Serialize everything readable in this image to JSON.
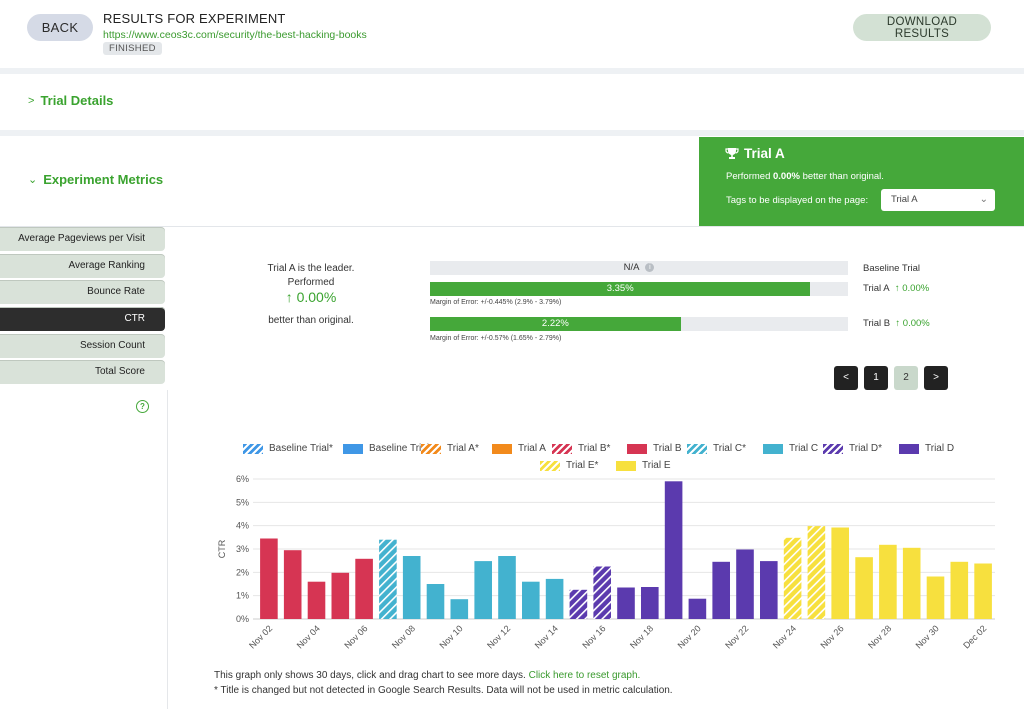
{
  "header": {
    "back_label": "BACK",
    "title": "RESULTS FOR EXPERIMENT",
    "url": "https://www.ceos3c.com/security/the-best-hacking-books",
    "status": "FINISHED",
    "download_label": "DOWNLOAD RESULTS"
  },
  "sections": {
    "trial_details": "Trial Details",
    "experiment_metrics": "Experiment Metrics"
  },
  "winner": {
    "title": "Trial A",
    "performed_prefix": "Performed ",
    "performed_value": "0.00%",
    "performed_suffix": " better than original.",
    "tags_label": "Tags to be displayed on the page:",
    "tags_selected": "Trial A"
  },
  "metric_tabs": [
    {
      "label": "Average Pageviews per Visit"
    },
    {
      "label": "Average Ranking"
    },
    {
      "label": "Bounce Rate"
    },
    {
      "label": "CTR",
      "active": true
    },
    {
      "label": "Session Count"
    },
    {
      "label": "Total Score"
    }
  ],
  "leader": {
    "line1": "Trial A is the leader.",
    "line2": "Performed",
    "value": "↑ 0.00%",
    "line3": "better than original."
  },
  "trial_bars": [
    {
      "bar_text": "N/A",
      "fill_pct": 0,
      "label": "Baseline Trial",
      "change": "",
      "moe": ""
    },
    {
      "bar_text": "3.35%",
      "fill_pct": 91,
      "label": "Trial A",
      "change": "↑ 0.00%",
      "moe": "Margin of Error: +/-0.445% (2.9% - 3.79%)"
    },
    {
      "bar_text": "2.22%",
      "fill_pct": 60,
      "label": "Trial B",
      "change": "↑ 0.00%",
      "moe": "Margin of Error: +/-0.57% (1.65% - 2.79%)"
    }
  ],
  "pagination": {
    "prev": "<",
    "page1": "1",
    "page2": "2",
    "next": ">"
  },
  "chart_legend": [
    {
      "label": "Baseline Trial*",
      "color": "#3f97e6",
      "hatch": true
    },
    {
      "label": "Baseline Trial",
      "color": "#3f97e6",
      "hatch": false
    },
    {
      "label": "Trial A*",
      "color": "#f28a1c",
      "hatch": true
    },
    {
      "label": "Trial A",
      "color": "#f28a1c",
      "hatch": false
    },
    {
      "label": "Trial B*",
      "color": "#d63553",
      "hatch": true
    },
    {
      "label": "Trial B",
      "color": "#d63553",
      "hatch": false
    },
    {
      "label": "Trial C*",
      "color": "#43b2cf",
      "hatch": true
    },
    {
      "label": "Trial C",
      "color": "#43b2cf",
      "hatch": false
    },
    {
      "label": "Trial D*",
      "color": "#5b3aae",
      "hatch": true
    },
    {
      "label": "Trial D",
      "color": "#5b3aae",
      "hatch": false
    },
    {
      "label": "Trial E*",
      "color": "#f7e03e",
      "hatch": true
    },
    {
      "label": "Trial E",
      "color": "#f7e03e",
      "hatch": false
    }
  ],
  "chart_data": {
    "type": "bar",
    "ylabel": "CTR",
    "ylim": [
      0,
      6
    ],
    "y_ticks": [
      "0%",
      "1%",
      "2%",
      "3%",
      "4%",
      "5%",
      "6%"
    ],
    "x_tick_labels": [
      "Nov 02",
      "Nov 04",
      "Nov 06",
      "Nov 08",
      "Nov 10",
      "Nov 12",
      "Nov 14",
      "Nov 16",
      "Nov 18",
      "Nov 20",
      "Nov 22",
      "Nov 24",
      "Nov 26",
      "Nov 28",
      "Nov 30",
      "Dec 02"
    ],
    "grid": true,
    "values": [
      3.45,
      2.95,
      1.6,
      1.98,
      2.58,
      3.4,
      2.7,
      1.5,
      0.85,
      2.48,
      2.7,
      1.6,
      1.72,
      1.25,
      2.25,
      1.35,
      1.37,
      5.9,
      0.87,
      2.45,
      2.98,
      2.48,
      3.48,
      3.98,
      3.92,
      2.65,
      3.18,
      3.05,
      1.82,
      2.45,
      2.38
    ],
    "series": [
      "Trial B",
      "Trial B",
      "Trial B",
      "Trial B",
      "Trial B",
      "Trial C*",
      "Trial C",
      "Trial C",
      "Trial C",
      "Trial C",
      "Trial C",
      "Trial C",
      "Trial C",
      "Trial D*",
      "Trial D*",
      "Trial D",
      "Trial D",
      "Trial D",
      "Trial D",
      "Trial D",
      "Trial D",
      "Trial D",
      "Trial E*",
      "Trial E*",
      "Trial E",
      "Trial E",
      "Trial E",
      "Trial E",
      "Trial E",
      "Trial E",
      "Trial E"
    ]
  },
  "notes": {
    "line1": "This graph only shows 30 days, click and drag chart to see more days. ",
    "reset_link": "Click here to reset graph.",
    "line2": "* Title is changed but not detected in Google Search Results. Data will not be used in metric calculation."
  }
}
